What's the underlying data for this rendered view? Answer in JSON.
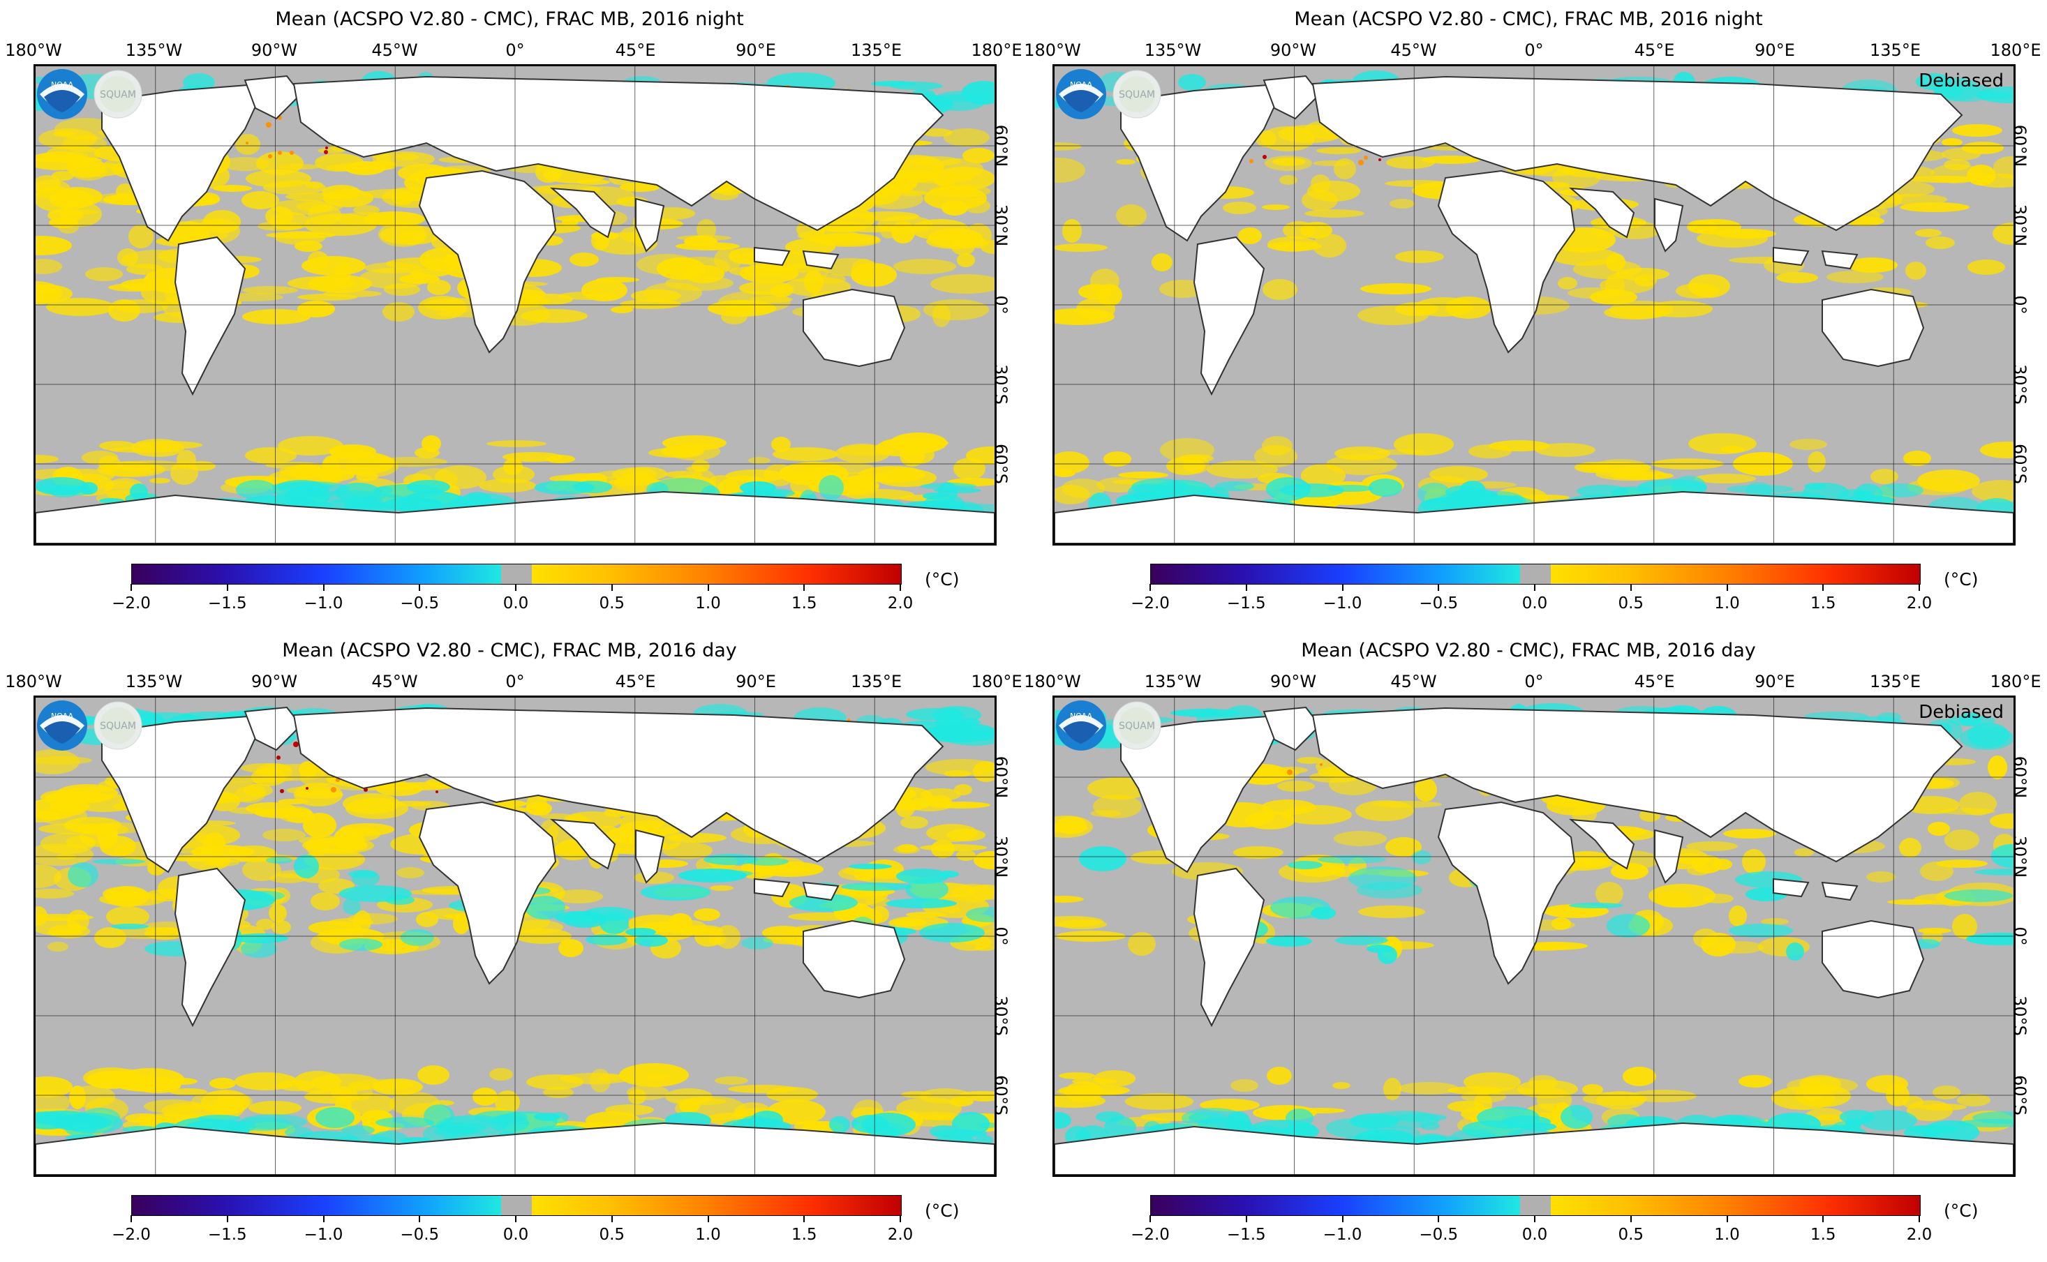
{
  "panels": [
    {
      "title": "Mean (ACSPO V2.80 - CMC), FRAC MB, 2016 night",
      "debiased": ""
    },
    {
      "title": "Mean (ACSPO V2.80 - CMC), FRAC MB, 2016 night",
      "debiased": "Debiased"
    },
    {
      "title": "Mean (ACSPO V2.80 - CMC), FRAC MB, 2016 day",
      "debiased": ""
    },
    {
      "title": "Mean (ACSPO V2.80 - CMC), FRAC MB, 2016 day",
      "debiased": "Debiased"
    }
  ],
  "lon_labels": [
    "180°W",
    "135°W",
    "90°W",
    "45°W",
    "0°",
    "45°E",
    "90°E",
    "135°E",
    "180°E"
  ],
  "lat_labels": [
    "60°N",
    "30°N",
    "0°",
    "30°S",
    "60°S"
  ],
  "colorbar": {
    "ticks": [
      "−2.0",
      "−1.5",
      "−1.0",
      "−0.5",
      "0.0",
      "0.5",
      "1.0",
      "1.5",
      "2.0"
    ],
    "unit": "(°C)",
    "range": [
      -2.0,
      2.0
    ],
    "colors": [
      "#3a005c",
      "#1a40ff",
      "#20e8e0",
      "#b0b0b0",
      "#ffe000",
      "#ff8000",
      "#c00000"
    ]
  },
  "logos": {
    "noaa": "NOAA",
    "squam": "SQUAM"
  },
  "colors": {
    "ocean_neutral": "#b7b7b7",
    "land": "#ffffff",
    "positive": "#ffe000",
    "strong_positive": "#ff9000",
    "negative": "#20e8e0"
  }
}
